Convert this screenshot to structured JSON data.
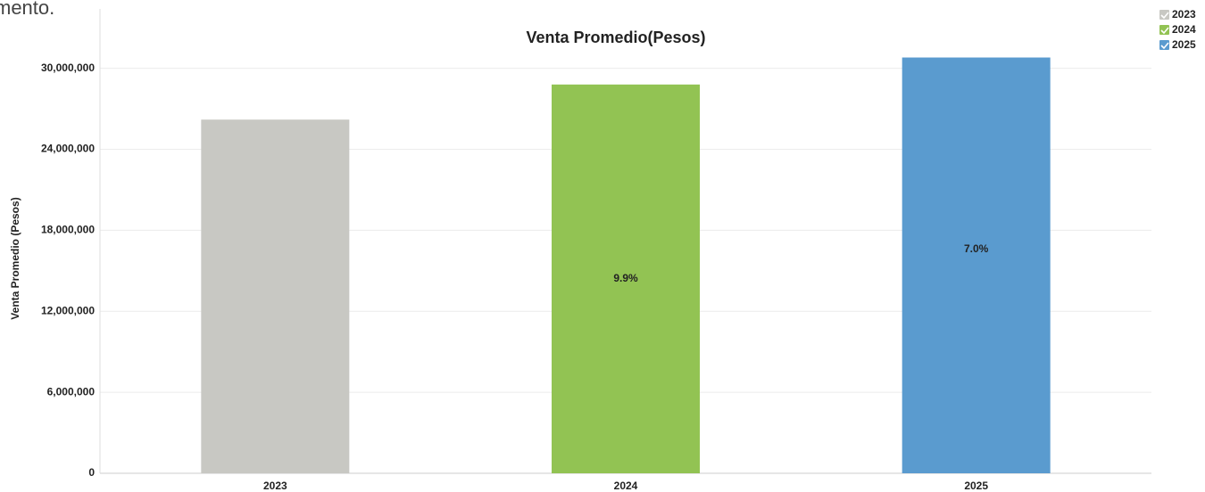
{
  "fragment_text": "mento.",
  "chart_data": {
    "type": "bar",
    "title": "Venta Promedio(Pesos)",
    "y_label": "Venta Promedio (Pesos)",
    "categories": [
      "2023",
      "2024",
      "2025"
    ],
    "values": [
      26200000,
      28800000,
      30800000
    ],
    "colors": [
      "#c8c8c3",
      "#92c353",
      "#5a9bcf"
    ],
    "annotations": [
      null,
      "9.9%",
      "7.0%"
    ],
    "ylim": [
      0,
      34400000
    ],
    "yticks": [
      0,
      {
        "value": 6000000,
        "label": "6,000,000"
      },
      {
        "value": 12000000,
        "label": "12,000,000"
      },
      {
        "value": 18000000,
        "label": "18,000,000"
      },
      {
        "value": 24000000,
        "label": "24,000,000"
      },
      {
        "value": 30000000,
        "label": "30,000,000"
      }
    ],
    "grid": true,
    "legend": "top-right"
  }
}
